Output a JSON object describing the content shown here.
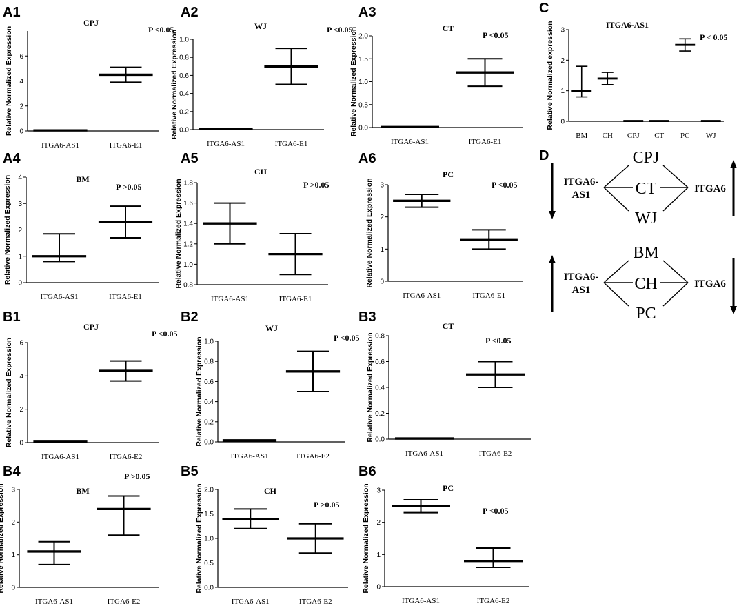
{
  "chart_data": [
    {
      "id": "A1",
      "type": "error-bar",
      "title": "CPJ",
      "pvalue": "P <0.05",
      "ylabel": "Relative Normalized Expression",
      "categories": [
        "ITGA6-AS1",
        "ITGA6-E1"
      ],
      "ylim": [
        0,
        8
      ],
      "yticks": [
        0,
        2,
        4,
        6
      ],
      "series": [
        {
          "values": [
            0.05,
            4.5
          ],
          "lower": [
            0.05,
            3.9
          ],
          "upper": [
            0.05,
            5.1
          ]
        }
      ]
    },
    {
      "id": "A2",
      "type": "error-bar",
      "title": "WJ",
      "pvalue": "P <0.05",
      "ylabel": "Relative Normalized Expression",
      "categories": [
        "ITGA6-AS1",
        "ITGA6-E1"
      ],
      "ylim": [
        0,
        1.0
      ],
      "yticks": [
        0.0,
        0.2,
        0.4,
        0.6,
        0.8,
        1.0
      ],
      "series": [
        {
          "values": [
            0.01,
            0.7
          ],
          "lower": [
            0.01,
            0.5
          ],
          "upper": [
            0.01,
            0.9
          ]
        }
      ]
    },
    {
      "id": "A3",
      "type": "error-bar",
      "title": "CT",
      "pvalue": "P <0.05",
      "ylabel": "Relative Normalized Expression",
      "categories": [
        "ITGA6-AS1",
        "ITGA6-E1"
      ],
      "ylim": [
        0,
        2.0
      ],
      "yticks": [
        0.0,
        0.5,
        1.0,
        1.5,
        2.0
      ],
      "series": [
        {
          "values": [
            0.01,
            1.2
          ],
          "lower": [
            0.01,
            0.9
          ],
          "upper": [
            0.01,
            1.5
          ]
        }
      ]
    },
    {
      "id": "A4",
      "type": "error-bar",
      "title": "BM",
      "pvalue": "P >0.05",
      "ylabel": "Relative Normalized Expression",
      "categories": [
        "ITGA6-AS1",
        "ITGA6-E1"
      ],
      "ylim": [
        0,
        4
      ],
      "yticks": [
        0,
        1,
        2,
        3,
        4
      ],
      "series": [
        {
          "values": [
            1.0,
            2.3
          ],
          "lower": [
            0.8,
            1.7
          ],
          "upper": [
            1.85,
            2.9
          ]
        }
      ]
    },
    {
      "id": "A5",
      "type": "error-bar",
      "title": "CH",
      "pvalue": "P >0.05",
      "ylabel": "Relative Normalized Expression",
      "categories": [
        "ITGA6-AS1",
        "ITGA6-E1"
      ],
      "ylim": [
        0.8,
        1.8
      ],
      "yticks": [
        0.8,
        1.0,
        1.2,
        1.4,
        1.6,
        1.8
      ],
      "series": [
        {
          "values": [
            1.4,
            1.1
          ],
          "lower": [
            1.2,
            0.9
          ],
          "upper": [
            1.6,
            1.3
          ]
        }
      ]
    },
    {
      "id": "A6",
      "type": "error-bar",
      "title": "PC",
      "pvalue": "P <0.05",
      "ylabel": "Relative Normalized Expression",
      "categories": [
        "ITGA6-AS1",
        "ITGA6-E1"
      ],
      "ylim": [
        0,
        3
      ],
      "yticks": [
        0,
        1,
        2,
        3
      ],
      "series": [
        {
          "values": [
            2.5,
            1.3
          ],
          "lower": [
            2.3,
            1.0
          ],
          "upper": [
            2.7,
            1.6
          ]
        }
      ]
    },
    {
      "id": "B1",
      "type": "error-bar",
      "title": "CPJ",
      "pvalue": "P <0.05",
      "ylabel": "Relative Normalized Expression",
      "categories": [
        "ITGA6-AS1",
        "ITGA6-E2"
      ],
      "ylim": [
        0,
        6
      ],
      "yticks": [
        0,
        2,
        4,
        6
      ],
      "series": [
        {
          "values": [
            0.05,
            4.3
          ],
          "lower": [
            0.05,
            3.7
          ],
          "upper": [
            0.05,
            4.9
          ]
        }
      ]
    },
    {
      "id": "B2",
      "type": "error-bar",
      "title": "WJ",
      "pvalue": "P <0.05",
      "ylabel": "Relative Normalized Expression",
      "categories": [
        "ITGA6-AS1",
        "ITGA6-E2"
      ],
      "ylim": [
        0,
        1.0
      ],
      "yticks": [
        0.0,
        0.2,
        0.4,
        0.6,
        0.8,
        1.0
      ],
      "series": [
        {
          "values": [
            0.015,
            0.7
          ],
          "lower": [
            0.015,
            0.5
          ],
          "upper": [
            0.015,
            0.9
          ]
        }
      ]
    },
    {
      "id": "B3",
      "type": "error-bar",
      "title": "CT",
      "pvalue": "P <0.05",
      "ylabel": "Relative Normalized Expression",
      "categories": [
        "ITGA6-AS1",
        "ITGA6-E2"
      ],
      "ylim": [
        0,
        0.8
      ],
      "yticks": [
        0.0,
        0.2,
        0.4,
        0.6,
        0.8
      ],
      "series": [
        {
          "values": [
            0.005,
            0.5
          ],
          "lower": [
            0.005,
            0.4
          ],
          "upper": [
            0.005,
            0.6
          ]
        }
      ]
    },
    {
      "id": "B4",
      "type": "error-bar",
      "title": "BM",
      "pvalue": "P >0.05",
      "ylabel": "Relative Normalized Expression",
      "categories": [
        "ITGA6-AS1",
        "ITGA6-E2"
      ],
      "ylim": [
        0,
        3
      ],
      "yticks": [
        0,
        1,
        2,
        3
      ],
      "series": [
        {
          "values": [
            1.1,
            2.4
          ],
          "lower": [
            0.7,
            1.6
          ],
          "upper": [
            1.4,
            2.8
          ]
        }
      ]
    },
    {
      "id": "B5",
      "type": "error-bar",
      "title": "CH",
      "pvalue": "P >0.05",
      "ylabel": "Relative Normalized Expression",
      "categories": [
        "ITGA6-AS1",
        "ITGA6-E2"
      ],
      "ylim": [
        0,
        2.0
      ],
      "yticks": [
        0.0,
        0.5,
        1.0,
        1.5,
        2.0
      ],
      "series": [
        {
          "values": [
            1.4,
            1.0
          ],
          "lower": [
            1.2,
            0.7
          ],
          "upper": [
            1.6,
            1.3
          ]
        }
      ]
    },
    {
      "id": "B6",
      "type": "error-bar",
      "title": "PC",
      "pvalue": "P <0.05",
      "ylabel": "Relative Normalized Expression",
      "categories": [
        "ITGA6-AS1",
        "ITGA6-E2"
      ],
      "ylim": [
        0,
        3
      ],
      "yticks": [
        0,
        1,
        2,
        3
      ],
      "series": [
        {
          "values": [
            2.5,
            0.8
          ],
          "lower": [
            2.3,
            0.6
          ],
          "upper": [
            2.7,
            1.2
          ]
        }
      ]
    },
    {
      "id": "C",
      "type": "error-bar",
      "title": "ITGA6-AS1",
      "pvalue": "P < 0.05",
      "ylabel": "Relative Normalized expression",
      "categories": [
        "BM",
        "CH",
        "CPJ",
        "CT",
        "PC",
        "WJ"
      ],
      "ylim": [
        0,
        3
      ],
      "yticks": [
        0,
        1,
        2,
        3
      ],
      "series": [
        {
          "values": [
            1.0,
            1.4,
            0.01,
            0.01,
            2.5,
            0.01
          ],
          "lower": [
            0.8,
            1.2,
            0.01,
            0.01,
            2.3,
            0.01
          ],
          "upper": [
            1.8,
            1.6,
            0.01,
            0.01,
            2.7,
            0.01
          ]
        }
      ]
    }
  ],
  "diagram": {
    "label": "D",
    "top": {
      "left_gene": [
        "ITGA6-",
        "AS1"
      ],
      "right_gene": "ITGA6",
      "nodes": [
        "CPJ",
        "CT",
        "WJ"
      ],
      "left_arrow": "down",
      "right_arrow": "up"
    },
    "bottom": {
      "left_gene": [
        "ITGA6-",
        "AS1"
      ],
      "right_gene": "ITGA6",
      "nodes": [
        "BM",
        "CH",
        "PC"
      ],
      "left_arrow": "up",
      "right_arrow": "down"
    }
  }
}
